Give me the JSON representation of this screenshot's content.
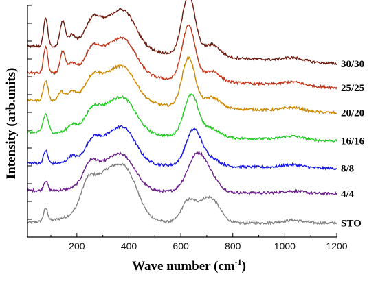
{
  "chart_data": {
    "type": "line",
    "title": "",
    "xlabel_main": "Wave number (cm",
    "xlabel_sup": "-1",
    "xlabel_end": ")",
    "ylabel": "Intensity (arb.units)",
    "xlim": [
      10,
      1200
    ],
    "xticks": [
      200,
      400,
      600,
      800,
      1000,
      1200
    ],
    "yticks_shown": false,
    "grid": false,
    "legend": "none",
    "series_label_placement": "right-edge",
    "series": [
      {
        "name": "STO",
        "color": "#7f7f7f",
        "offset": 0.2,
        "bg_end": 0.0,
        "peaks": [
          [
            80,
            0.18,
            8
          ],
          [
            240,
            0.28,
            25
          ],
          [
            320,
            0.58,
            60
          ],
          [
            400,
            0.4,
            40
          ],
          [
            300,
            0.15,
            120
          ],
          [
            625,
            0.25,
            25
          ],
          [
            690,
            0.28,
            40
          ],
          [
            730,
            0.15,
            30
          ],
          [
            1030,
            0.04,
            40
          ]
        ]
      },
      {
        "name": "4/4",
        "color": "#6a1e8a",
        "offset": 0.62,
        "bg_end": 0.18,
        "peaks": [
          [
            80,
            0.14,
            8
          ],
          [
            250,
            0.22,
            25
          ],
          [
            330,
            0.42,
            70
          ],
          [
            390,
            0.2,
            40
          ],
          [
            665,
            0.55,
            38
          ],
          [
            725,
            0.1,
            30
          ],
          [
            1030,
            0.03,
            40
          ]
        ]
      },
      {
        "name": "8/8",
        "color": "#1515e0",
        "offset": 0.98,
        "bg_end": 0.3,
        "peaks": [
          [
            80,
            0.18,
            8
          ],
          [
            180,
            0.08,
            15
          ],
          [
            260,
            0.16,
            25
          ],
          [
            330,
            0.38,
            70
          ],
          [
            390,
            0.25,
            40
          ],
          [
            650,
            0.52,
            30
          ],
          [
            720,
            0.1,
            30
          ],
          [
            1030,
            0.04,
            40
          ]
        ]
      },
      {
        "name": "16/16",
        "color": "#22cc22",
        "offset": 1.37,
        "bg_end": 0.5,
        "peaks": [
          [
            80,
            0.26,
            10
          ],
          [
            180,
            0.08,
            15
          ],
          [
            260,
            0.14,
            25
          ],
          [
            330,
            0.4,
            75
          ],
          [
            390,
            0.22,
            40
          ],
          [
            640,
            0.6,
            28
          ],
          [
            720,
            0.12,
            30
          ],
          [
            1030,
            0.05,
            40
          ]
        ]
      },
      {
        "name": "20/20",
        "color": "#cc8800",
        "offset": 1.77,
        "bg_end": 0.73,
        "peaks": [
          [
            80,
            0.28,
            9
          ],
          [
            140,
            0.12,
            12
          ],
          [
            180,
            0.1,
            15
          ],
          [
            260,
            0.16,
            25
          ],
          [
            330,
            0.4,
            75
          ],
          [
            390,
            0.22,
            40
          ],
          [
            630,
            0.7,
            25
          ],
          [
            720,
            0.15,
            30
          ],
          [
            1030,
            0.05,
            40
          ]
        ]
      },
      {
        "name": "25/25",
        "color": "#c0351a",
        "offset": 2.13,
        "bg_end": 0.86,
        "peaks": [
          [
            80,
            0.38,
            8
          ],
          [
            145,
            0.3,
            10
          ],
          [
            180,
            0.12,
            14
          ],
          [
            260,
            0.18,
            25
          ],
          [
            330,
            0.4,
            75
          ],
          [
            390,
            0.24,
            40
          ],
          [
            630,
            0.78,
            25
          ],
          [
            720,
            0.15,
            30
          ],
          [
            1030,
            0.05,
            40
          ]
        ]
      },
      {
        "name": "30/30",
        "color": "#6b1a0e",
        "offset": 2.47,
        "bg_end": 1.03,
        "peaks": [
          [
            80,
            0.4,
            8
          ],
          [
            145,
            0.36,
            10
          ],
          [
            180,
            0.14,
            14
          ],
          [
            260,
            0.2,
            25
          ],
          [
            330,
            0.42,
            75
          ],
          [
            390,
            0.26,
            40
          ],
          [
            630,
            0.86,
            25
          ],
          [
            720,
            0.17,
            30
          ],
          [
            1030,
            0.05,
            40
          ]
        ]
      }
    ]
  }
}
